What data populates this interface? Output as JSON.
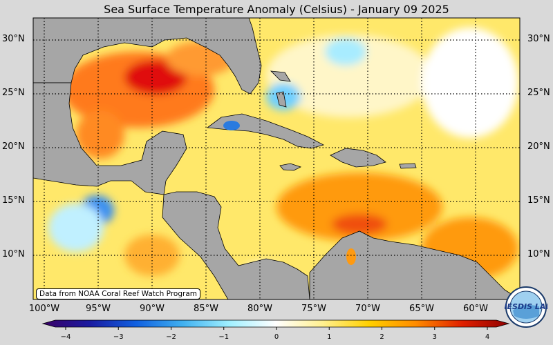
{
  "title": "Sea Surface Temperature Anomaly (Celsius) - January 09 2025",
  "credit": "Data from NOAA Coral Reef Watch Program",
  "lat_labels": [
    "30°N",
    "25°N",
    "20°N",
    "15°N",
    "10°N"
  ],
  "lon_labels": [
    "100°W",
    "95°W",
    "90°W",
    "85°W",
    "80°W",
    "75°W",
    "70°W",
    "65°W",
    "60°W"
  ],
  "colorbar": {
    "ticks": [
      "−4",
      "−3",
      "−2",
      "−1",
      "0",
      "1",
      "2",
      "3",
      "4"
    ],
    "min": -4,
    "max": 4,
    "colors": [
      "#3a0066",
      "#1a1aa0",
      "#1060e0",
      "#40b0f0",
      "#a0f0ff",
      "#ffffff",
      "#fff090",
      "#ffd000",
      "#ff8c00",
      "#e02000",
      "#900000"
    ]
  },
  "logo_text": "NESDIS LAB",
  "colors": {
    "land": "#a6a6a6",
    "border": "#000000"
  }
}
